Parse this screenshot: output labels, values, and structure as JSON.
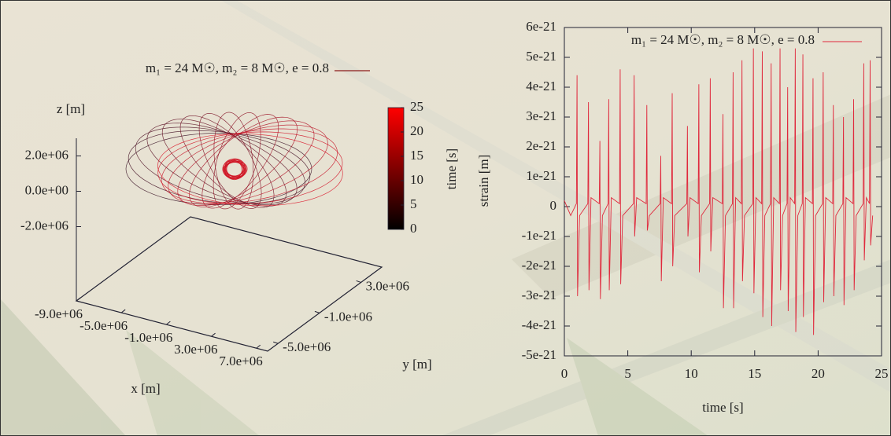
{
  "chart_data": [
    {
      "type": "orbit3d",
      "series": [
        {
          "name": "m₁ = 24 M☉, m₂ = 8 M☉, e = 0.8",
          "color": "#8b1a1a"
        }
      ],
      "xlabel": "x [m]",
      "ylabel": "y [m]",
      "zlabel": "z [m]",
      "clabel": "time [s]",
      "xlim": [
        -9000000,
        8000000
      ],
      "xticks": [
        {
          "value": -9000000,
          "label": "-9.0e+06"
        },
        {
          "value": -5000000,
          "label": "-5.0e+06"
        },
        {
          "value": -1000000,
          "label": "-1.0e+06"
        },
        {
          "value": 3000000,
          "label": "3.0e+06"
        },
        {
          "value": 7000000,
          "label": "7.0e+06"
        }
      ],
      "ylim": [
        -6000000,
        5000000
      ],
      "yticks": [
        {
          "value": -5000000,
          "label": "-5.0e+06"
        },
        {
          "value": -1000000,
          "label": "-1.0e+06"
        },
        {
          "value": 3000000,
          "label": "3.0e+06"
        }
      ],
      "zlim": [
        -6200000,
        3000000
      ],
      "zticks": [
        {
          "value": 2000000,
          "label": "2.0e+06"
        },
        {
          "value": 0,
          "label": "0.0e+00"
        },
        {
          "value": -2000000,
          "label": "-2.0e+06"
        }
      ],
      "clim": [
        0,
        25
      ],
      "cticks": [
        0,
        5,
        10,
        15,
        20,
        25
      ],
      "colormap": [
        "#000000",
        "#ff0000"
      ]
    },
    {
      "type": "line",
      "xlabel": "time [s]",
      "ylabel": "strain [m]",
      "x": [
        0,
        0.5,
        0.95,
        1,
        1.04,
        1.2,
        1.85,
        1.9,
        1.94,
        2.1,
        2.75,
        2.8,
        2.84,
        3.0,
        3.45,
        3.5,
        3.54,
        3.7,
        4.35,
        4.4,
        4.44,
        4.6,
        5.45,
        5.5,
        5.54,
        5.7,
        6.45,
        6.5,
        6.54,
        6.7,
        7.55,
        7.6,
        7.64,
        7.8,
        8.45,
        8.5,
        8.54,
        8.7,
        9.65,
        9.7,
        9.74,
        9.9,
        10.55,
        10.6,
        10.64,
        10.8,
        11.45,
        11.5,
        11.54,
        11.7,
        12.45,
        12.5,
        12.54,
        12.7,
        13.25,
        13.3,
        13.34,
        13.5,
        13.95,
        14,
        14.04,
        14.2,
        14.85,
        14.9,
        14.94,
        15.1,
        15.55,
        15.6,
        15.64,
        15.8,
        16.25,
        16.3,
        16.34,
        16.5,
        16.95,
        17,
        17.04,
        17.2,
        17.55,
        17.6,
        17.64,
        17.8,
        18.15,
        18.2,
        18.24,
        18.4,
        18.75,
        18.8,
        18.84,
        19,
        19.55,
        19.6,
        19.64,
        19.8,
        20.35,
        20.4,
        20.44,
        20.6,
        21.15,
        21.2,
        21.24,
        21.4,
        21.95,
        22,
        22.04,
        22.2,
        22.75,
        22.8,
        22.84,
        23,
        23.55,
        23.6,
        23.64,
        23.8,
        24.05,
        24.1,
        24.14,
        24.3
      ],
      "series": [
        {
          "name": "m₁ = 24 M☉, m₂ = 8 M☉, e = 0.8",
          "color": "#e0283c",
          "values": [
            2e-22,
            -3e-22,
            1e-22,
            4.4e-21,
            -3e-21,
            -3e-22,
            1e-22,
            3.5e-21,
            -2.8e-21,
            3e-22,
            1e-22,
            2.2e-21,
            -3.1e-21,
            -3e-22,
            1e-22,
            3.6e-21,
            -2.8e-21,
            3e-22,
            1e-22,
            4.6e-21,
            -2.6e-21,
            -3e-22,
            1e-22,
            4.4e-21,
            -1e-21,
            3e-22,
            1e-22,
            3.4e-21,
            -8e-22,
            -3e-22,
            1e-22,
            1.7e-21,
            -2.5e-21,
            3e-22,
            1e-22,
            3.8e-21,
            -2e-21,
            -3e-22,
            1e-22,
            2.7e-21,
            -1e-21,
            3e-22,
            1e-22,
            4.1e-21,
            -2.2e-21,
            -3e-22,
            1e-22,
            4.3e-21,
            -1.5e-21,
            3e-22,
            1e-22,
            3.1e-21,
            -3.4e-21,
            -3e-22,
            1e-22,
            4.5e-21,
            -3.4e-21,
            3e-22,
            1e-22,
            4.9e-21,
            -2.5e-21,
            -3e-22,
            1e-22,
            5.3e-21,
            -2.9e-21,
            3e-22,
            1e-22,
            5.2e-21,
            -3.7e-21,
            -3e-22,
            1e-22,
            4.8e-21,
            -4e-21,
            3e-22,
            1e-22,
            5.3e-21,
            -2.8e-21,
            -3e-22,
            1e-22,
            4e-21,
            -3.5e-21,
            3e-22,
            1e-22,
            5.3e-21,
            -4.2e-21,
            -3e-22,
            1e-22,
            5.1e-21,
            -3.7e-21,
            3e-22,
            1e-22,
            4.3e-21,
            -4.3e-21,
            -3e-22,
            1e-22,
            4.5e-21,
            -3.2e-21,
            3e-22,
            1e-22,
            3.4e-21,
            -3e-21,
            -3e-22,
            1e-22,
            3e-21,
            -3.3e-21,
            3e-22,
            1e-22,
            3.6e-21,
            -2.8e-21,
            -3e-22,
            1e-22,
            4.8e-21,
            -1.8e-21,
            3e-22,
            1e-22,
            4.9e-21,
            -1.3e-21,
            -3e-22
          ]
        }
      ],
      "xlim": [
        0,
        25
      ],
      "xticks": [
        0,
        5,
        10,
        15,
        20,
        25
      ],
      "ylim": [
        -5e-21,
        6e-21
      ],
      "yticks": [
        -5e-21,
        -4e-21,
        -3e-21,
        -2e-21,
        -1e-21,
        0,
        1e-21,
        2e-21,
        3e-21,
        4e-21,
        5e-21,
        6e-21
      ]
    }
  ]
}
